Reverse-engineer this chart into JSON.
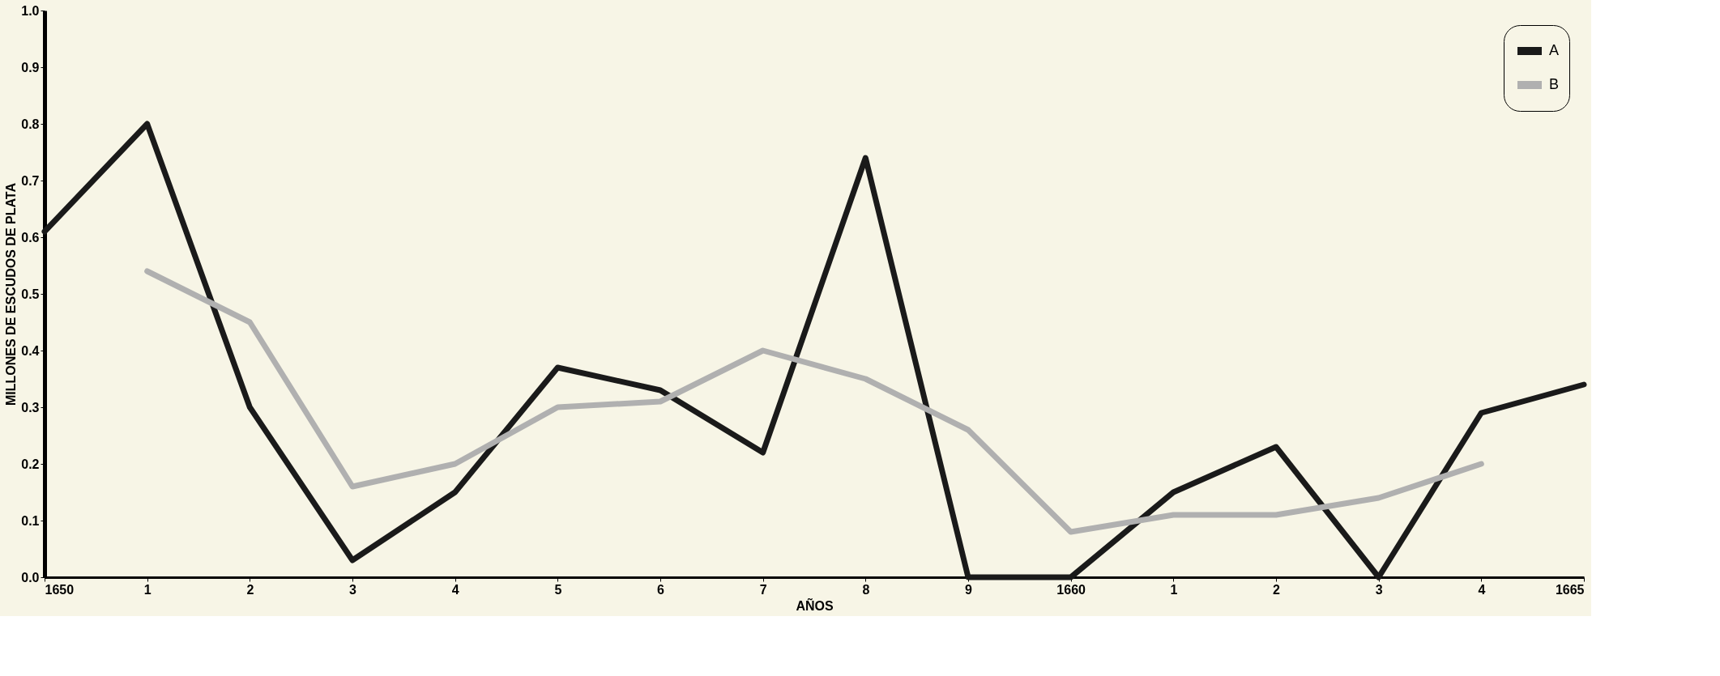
{
  "chart_data": {
    "type": "line",
    "xlabel": "AÑOS",
    "ylabel": "MILLONES DE ESCUDOS DE PLATA",
    "categories": [
      "1650",
      "1",
      "2",
      "3",
      "4",
      "5",
      "6",
      "7",
      "8",
      "9",
      "1660",
      "1",
      "2",
      "3",
      "4",
      "1665"
    ],
    "ylim": [
      0,
      1
    ],
    "yticks": [
      {
        "value": 0,
        "label": "0.0"
      },
      0.1,
      0.2,
      0.3,
      0.4,
      0.5,
      0.6,
      0.7,
      0.8,
      0.9,
      {
        "value": 1,
        "label": "1.0"
      }
    ],
    "grid": false,
    "legend": "top right",
    "line_style": "solid",
    "series": [
      {
        "name": "A",
        "color": "#1a1a1a",
        "values": [
          0.61,
          0.8,
          0.3,
          0.03,
          0.15,
          0.37,
          0.33,
          0.22,
          0.74,
          0.0,
          0.0,
          0.15,
          0.23,
          0.0,
          0.29,
          0.34
        ]
      },
      {
        "name": "B",
        "color": "#b0b0b0",
        "values": [
          null,
          0.54,
          0.45,
          0.16,
          0.2,
          0.3,
          0.31,
          0.4,
          0.35,
          0.26,
          0.08,
          0.11,
          0.11,
          0.14,
          0.2,
          null
        ]
      }
    ]
  }
}
